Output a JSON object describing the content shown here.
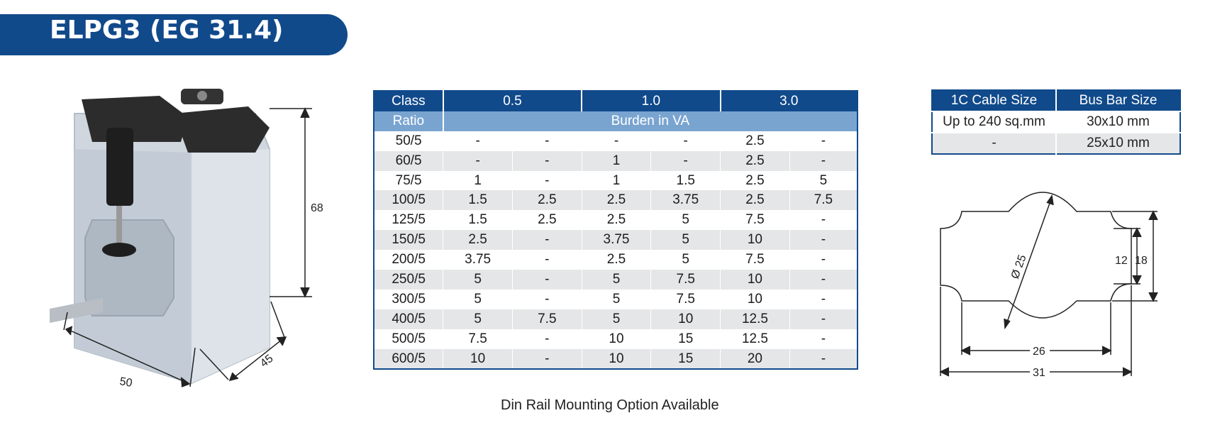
{
  "header": {
    "title": "ELPG3 (EG 31.4)"
  },
  "ratio_table": {
    "class_label": "Class",
    "class_values": [
      "0.5",
      "1.0",
      "3.0"
    ],
    "ratio_label": "Ratio",
    "burden_label": "Burden in VA",
    "rows": [
      {
        "ratio": "50/5",
        "cells": [
          "-",
          "-",
          "-",
          "-",
          "2.5",
          "-"
        ]
      },
      {
        "ratio": "60/5",
        "cells": [
          "-",
          "-",
          "1",
          "-",
          "2.5",
          "-"
        ]
      },
      {
        "ratio": "75/5",
        "cells": [
          "1",
          "-",
          "1",
          "1.5",
          "2.5",
          "5"
        ]
      },
      {
        "ratio": "100/5",
        "cells": [
          "1.5",
          "2.5",
          "2.5",
          "3.75",
          "2.5",
          "7.5"
        ]
      },
      {
        "ratio": "125/5",
        "cells": [
          "1.5",
          "2.5",
          "2.5",
          "5",
          "7.5",
          "-"
        ]
      },
      {
        "ratio": "150/5",
        "cells": [
          "2.5",
          "-",
          "3.75",
          "5",
          "10",
          "-"
        ]
      },
      {
        "ratio": "200/5",
        "cells": [
          "3.75",
          "-",
          "2.5",
          "5",
          "7.5",
          "-"
        ]
      },
      {
        "ratio": "250/5",
        "cells": [
          "5",
          "-",
          "5",
          "7.5",
          "10",
          "-"
        ]
      },
      {
        "ratio": "300/5",
        "cells": [
          "5",
          "-",
          "5",
          "7.5",
          "10",
          "-"
        ]
      },
      {
        "ratio": "400/5",
        "cells": [
          "5",
          "7.5",
          "5",
          "10",
          "12.5",
          "-"
        ]
      },
      {
        "ratio": "500/5",
        "cells": [
          "7.5",
          "-",
          "10",
          "15",
          "12.5",
          "-"
        ]
      },
      {
        "ratio": "600/5",
        "cells": [
          "10",
          "-",
          "10",
          "15",
          "20",
          "-"
        ]
      }
    ]
  },
  "size_table": {
    "headers": [
      "1C Cable Size",
      "Bus Bar Size"
    ],
    "rows": [
      [
        "Up to 240 sq.mm",
        "30x10 mm"
      ],
      [
        "-",
        "25x10 mm"
      ]
    ]
  },
  "note": "Din Rail Mounting Option Available",
  "product_dims": {
    "height": "68",
    "width": "50",
    "depth": "45"
  },
  "aperture_dims": {
    "diameter": "Ø 25",
    "inner_height": "12",
    "outer_height": "18",
    "inner_width": "26",
    "outer_width": "31"
  },
  "colors": {
    "brand_blue": "#114a8b",
    "light_blue": "#79a4d0",
    "row_grey": "#e4e6e8"
  }
}
